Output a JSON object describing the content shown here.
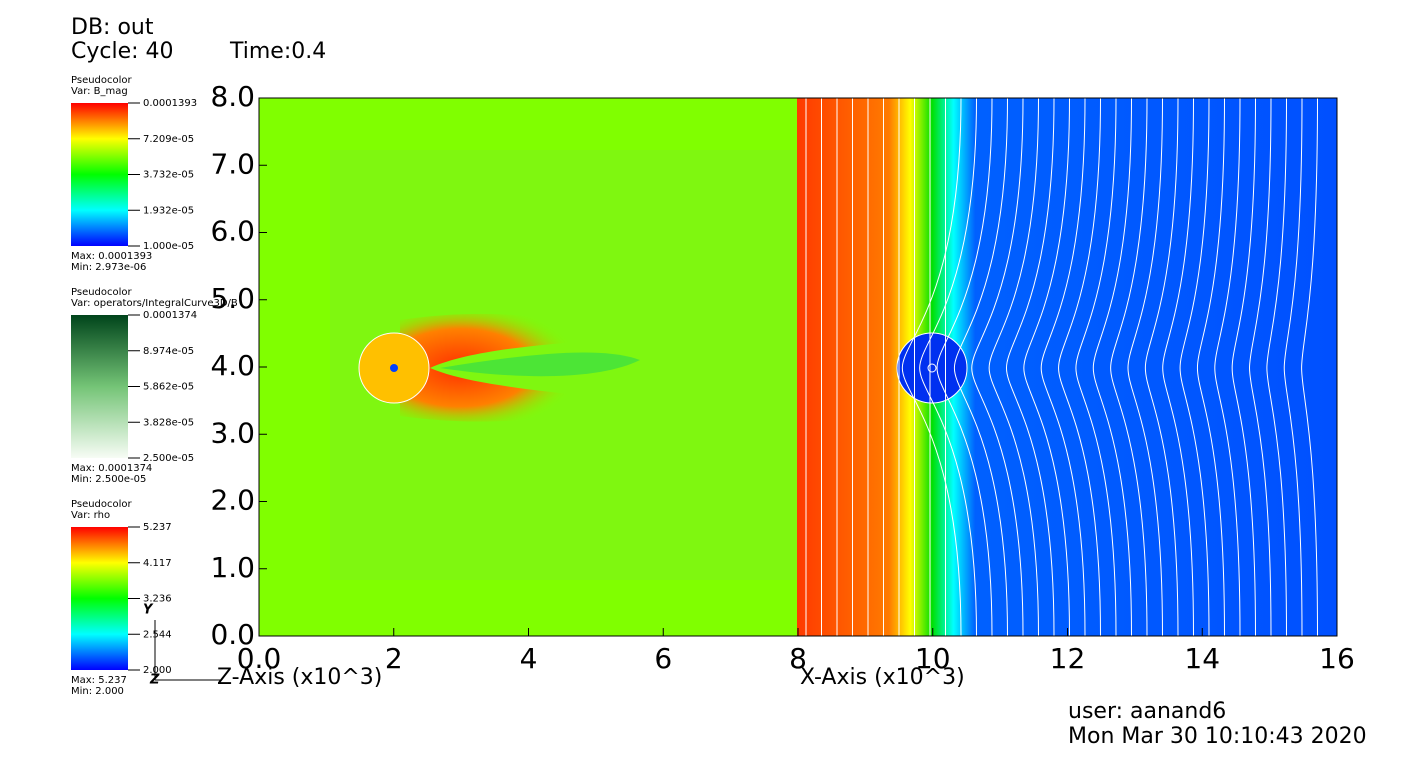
{
  "header": {
    "db": "DB: out",
    "cycle": "Cycle: 40",
    "time": "Time:0.4"
  },
  "legends": [
    {
      "plot": "Pseudocolor",
      "var": "Var: B_mag",
      "ticks": [
        "0.0001393",
        "7.209e-05",
        "3.732e-05",
        "1.932e-05",
        "1.000e-05"
      ],
      "max": "Max:  0.0001393",
      "min": "Min:  2.973e-06"
    },
    {
      "plot": "Pseudocolor",
      "var": "Var: operators/IntegralCurve3D/B",
      "ticks": [
        "0.0001374",
        "8.974e-05",
        "5.862e-05",
        "3.828e-05",
        "2.500e-05"
      ],
      "max": "Max:  0.0001374",
      "min": "Min:  2.500e-05"
    },
    {
      "plot": "Pseudocolor",
      "var": "Var: rho",
      "ticks": [
        "5.237",
        "4.117",
        "3.236",
        "2.544",
        "2.000"
      ],
      "max": "Max:  5.237",
      "min": "Min:  2.000"
    }
  ],
  "y_axis": {
    "ticks": [
      "0.0",
      "1.0",
      "2.0",
      "3.0",
      "4.0",
      "5.0",
      "6.0",
      "7.0",
      "8.0"
    ]
  },
  "x_axis": {
    "ticks": [
      "0.0",
      "2",
      "4",
      "6",
      "8",
      "10",
      "12",
      "14",
      "16"
    ],
    "left_label": "Z-Axis (x10^3)",
    "right_label": "X-Axis (x10^3)"
  },
  "triad": {
    "y": "Y",
    "z": "Z"
  },
  "footer": {
    "user": "user: aanand6",
    "date": "Mon Mar 30 10:10:43 2020"
  }
}
